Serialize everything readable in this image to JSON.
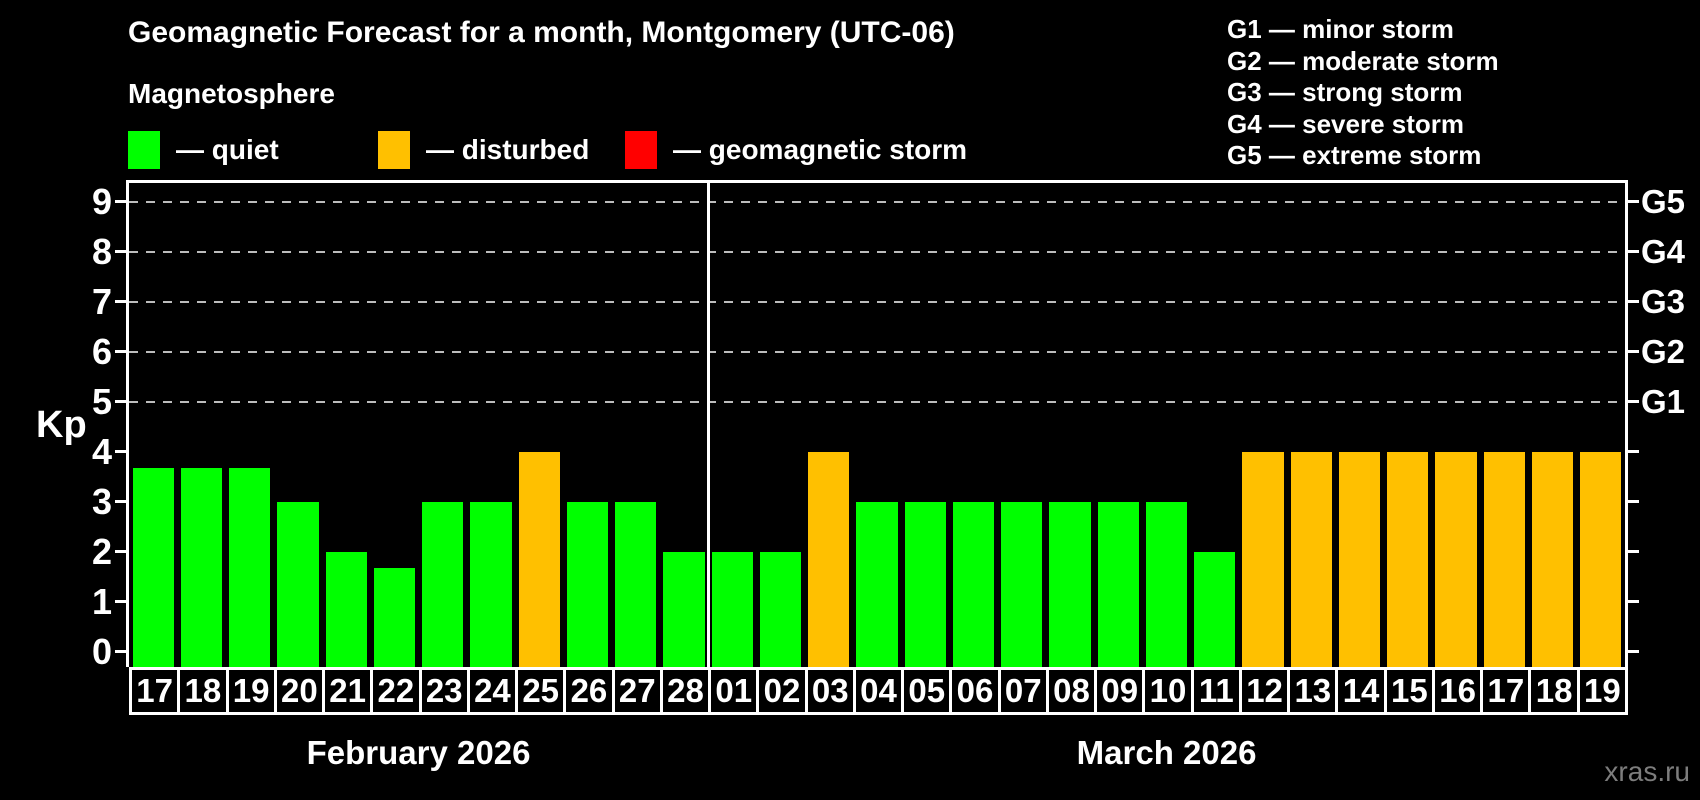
{
  "header": {
    "title": "Geomagnetic Forecast for a month, Montgomery (UTC-06)",
    "subtitle": "Magnetosphere"
  },
  "legend": {
    "items": [
      {
        "label": "— quiet",
        "color": "#00ff00",
        "status": "quiet"
      },
      {
        "label": "— disturbed",
        "color": "#ffc000",
        "status": "disturbed"
      },
      {
        "label": "— geomagnetic storm",
        "color": "#ff0000",
        "status": "storm"
      }
    ]
  },
  "g_scale_legend": {
    "lines": [
      "G1 — minor storm",
      "G2 — moderate storm",
      "G3 — strong storm",
      "G4 — severe storm",
      "G5 — extreme storm"
    ]
  },
  "watermark": {
    "text": "xras.ru"
  },
  "chart_data": {
    "type": "bar",
    "ylabel": "Kp",
    "ylim": [
      0,
      9
    ],
    "yticks": [
      0,
      1,
      2,
      3,
      4,
      5,
      6,
      7,
      8,
      9
    ],
    "gridlines_at": [
      5,
      6,
      7,
      8,
      9
    ],
    "grid": "dashed, only at storm levels 5-9",
    "right_axis_labels": [
      {
        "kp": 5,
        "label": "G1"
      },
      {
        "kp": 6,
        "label": "G2"
      },
      {
        "kp": 7,
        "label": "G3"
      },
      {
        "kp": 8,
        "label": "G4"
      },
      {
        "kp": 9,
        "label": "G5"
      }
    ],
    "colors": {
      "quiet": "#00ff00",
      "disturbed": "#ffc000",
      "storm": "#ff0000"
    },
    "months": [
      {
        "label": "February 2026",
        "days": [
          {
            "day": "17",
            "kp": 3.67,
            "status": "quiet"
          },
          {
            "day": "18",
            "kp": 3.67,
            "status": "quiet"
          },
          {
            "day": "19",
            "kp": 3.67,
            "status": "quiet"
          },
          {
            "day": "20",
            "kp": 3,
            "status": "quiet"
          },
          {
            "day": "21",
            "kp": 2,
            "status": "quiet"
          },
          {
            "day": "22",
            "kp": 1.67,
            "status": "quiet"
          },
          {
            "day": "23",
            "kp": 3,
            "status": "quiet"
          },
          {
            "day": "24",
            "kp": 3,
            "status": "quiet"
          },
          {
            "day": "25",
            "kp": 4,
            "status": "disturbed"
          },
          {
            "day": "26",
            "kp": 3,
            "status": "quiet"
          },
          {
            "day": "27",
            "kp": 3,
            "status": "quiet"
          },
          {
            "day": "28",
            "kp": 2,
            "status": "quiet"
          }
        ]
      },
      {
        "label": "March 2026",
        "days": [
          {
            "day": "01",
            "kp": 2,
            "status": "quiet"
          },
          {
            "day": "02",
            "kp": 2,
            "status": "quiet"
          },
          {
            "day": "03",
            "kp": 4,
            "status": "disturbed"
          },
          {
            "day": "04",
            "kp": 3,
            "status": "quiet"
          },
          {
            "day": "05",
            "kp": 3,
            "status": "quiet"
          },
          {
            "day": "06",
            "kp": 3,
            "status": "quiet"
          },
          {
            "day": "07",
            "kp": 3,
            "status": "quiet"
          },
          {
            "day": "08",
            "kp": 3,
            "status": "quiet"
          },
          {
            "day": "09",
            "kp": 3,
            "status": "quiet"
          },
          {
            "day": "10",
            "kp": 3,
            "status": "quiet"
          },
          {
            "day": "11",
            "kp": 2,
            "status": "quiet"
          },
          {
            "day": "12",
            "kp": 4,
            "status": "disturbed"
          },
          {
            "day": "13",
            "kp": 4,
            "status": "disturbed"
          },
          {
            "day": "14",
            "kp": 4,
            "status": "disturbed"
          },
          {
            "day": "15",
            "kp": 4,
            "status": "disturbed"
          },
          {
            "day": "16",
            "kp": 4,
            "status": "disturbed"
          },
          {
            "day": "17",
            "kp": 4,
            "status": "disturbed"
          },
          {
            "day": "18",
            "kp": 4,
            "status": "disturbed"
          },
          {
            "day": "19",
            "kp": 4,
            "status": "disturbed"
          }
        ]
      }
    ]
  }
}
